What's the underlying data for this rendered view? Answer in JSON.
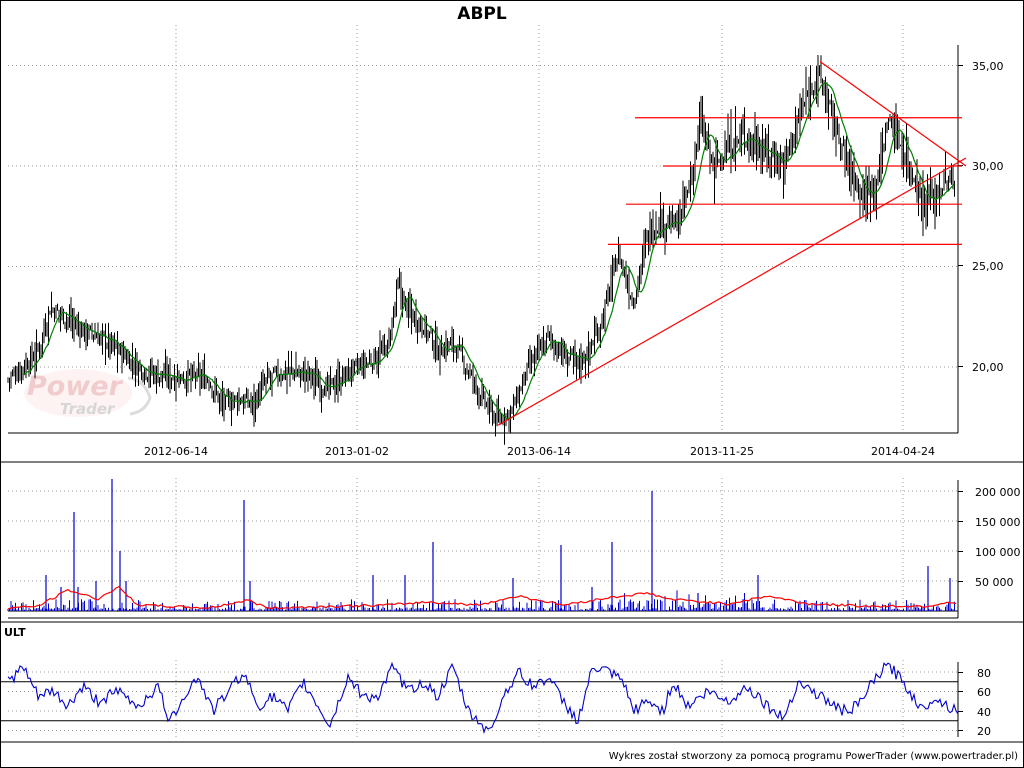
{
  "chart_data": [
    {
      "type": "candlestick",
      "title": "ABPL",
      "ylim": [
        17.0,
        36.0
      ],
      "y_ticks": [
        "35,00",
        "30,00",
        "25,00",
        "20,00"
      ],
      "x_ticks": [
        "2012-06-14",
        "2013-01-02",
        "2013-06-14",
        "2013-11-25",
        "2014-04-24"
      ],
      "grid": true,
      "colors": {
        "price": "#000000",
        "moving_average": "#008000",
        "lines": "#ff0000"
      },
      "price_path": [
        [
          0,
          19.4
        ],
        [
          15,
          20.0
        ],
        [
          30,
          20.8
        ],
        [
          42,
          22.9
        ],
        [
          55,
          22.6
        ],
        [
          75,
          21.8
        ],
        [
          95,
          21.4
        ],
        [
          110,
          20.8
        ],
        [
          130,
          20.0
        ],
        [
          150,
          19.6
        ],
        [
          175,
          19.5
        ],
        [
          200,
          19.4
        ],
        [
          215,
          18.1
        ],
        [
          230,
          18.4
        ],
        [
          245,
          18.2
        ],
        [
          260,
          19.4
        ],
        [
          280,
          19.8
        ],
        [
          300,
          19.6
        ],
        [
          320,
          18.9
        ],
        [
          340,
          19.7
        ],
        [
          360,
          20.2
        ],
        [
          380,
          21.0
        ],
        [
          390,
          24.0
        ],
        [
          400,
          22.8
        ],
        [
          415,
          22.1
        ],
        [
          430,
          20.8
        ],
        [
          445,
          21.2
        ],
        [
          460,
          19.8
        ],
        [
          475,
          18.3
        ],
        [
          490,
          17.3
        ],
        [
          505,
          17.9
        ],
        [
          520,
          19.9
        ],
        [
          540,
          21.5
        ],
        [
          555,
          20.6
        ],
        [
          570,
          20.2
        ],
        [
          580,
          20.7
        ],
        [
          595,
          22.5
        ],
        [
          610,
          25.7
        ],
        [
          625,
          23.2
        ],
        [
          640,
          26.7
        ],
        [
          655,
          27.3
        ],
        [
          670,
          27.0
        ],
        [
          683,
          29.3
        ],
        [
          692,
          32.3
        ],
        [
          705,
          30.0
        ],
        [
          720,
          30.8
        ],
        [
          735,
          31.5
        ],
        [
          755,
          30.8
        ],
        [
          775,
          30.1
        ],
        [
          795,
          33.0
        ],
        [
          810,
          34.6
        ],
        [
          820,
          33.2
        ],
        [
          830,
          31.5
        ],
        [
          840,
          30.1
        ],
        [
          855,
          28.4
        ],
        [
          870,
          29.5
        ],
        [
          880,
          32.4
        ],
        [
          895,
          30.8
        ],
        [
          905,
          29.5
        ],
        [
          915,
          28.2
        ],
        [
          925,
          28.5
        ],
        [
          940,
          29.2
        ],
        [
          955,
          29.0
        ]
      ],
      "trend_lines": [
        {
          "name": "support",
          "from": [
            490,
            17.1
          ],
          "to": [
            958,
            30.4
          ]
        },
        {
          "name": "resistance",
          "from": [
            812,
            35.2
          ],
          "to": [
            958,
            30.0
          ]
        }
      ],
      "horizontal_levels": [
        {
          "y": 32.4,
          "from_x": 627
        },
        {
          "y": 30.0,
          "from_x": 655
        },
        {
          "y": 28.1,
          "from_x": 618
        },
        {
          "y": 26.1,
          "from_x": 600
        }
      ]
    },
    {
      "type": "bar",
      "panel": "volume",
      "ylim": [
        0,
        230000
      ],
      "y_ticks": [
        "200 000",
        "150 000",
        "100 000",
        "50 000"
      ],
      "colors": {
        "bars": "#0000cc",
        "average": "#ff0000"
      },
      "spikes": [
        [
          38,
          60000
        ],
        [
          53,
          40000
        ],
        [
          66,
          165000
        ],
        [
          70,
          40000
        ],
        [
          88,
          50000
        ],
        [
          104,
          220000
        ],
        [
          112,
          100000
        ],
        [
          118,
          50000
        ],
        [
          236,
          185000
        ],
        [
          242,
          50000
        ],
        [
          365,
          60000
        ],
        [
          397,
          60000
        ],
        [
          425,
          115000
        ],
        [
          505,
          55000
        ],
        [
          553,
          110000
        ],
        [
          584,
          40000
        ],
        [
          604,
          115000
        ],
        [
          644,
          200000
        ],
        [
          690,
          30000
        ],
        [
          750,
          60000
        ],
        [
          920,
          75000
        ],
        [
          942,
          55000
        ]
      ],
      "average_path": [
        [
          0,
          5000
        ],
        [
          30,
          8000
        ],
        [
          60,
          35000
        ],
        [
          90,
          20000
        ],
        [
          110,
          40000
        ],
        [
          130,
          10000
        ],
        [
          200,
          5000
        ],
        [
          240,
          18000
        ],
        [
          260,
          5000
        ],
        [
          380,
          10000
        ],
        [
          420,
          15000
        ],
        [
          470,
          10000
        ],
        [
          510,
          25000
        ],
        [
          555,
          10000
        ],
        [
          600,
          22000
        ],
        [
          640,
          30000
        ],
        [
          660,
          20000
        ],
        [
          720,
          12000
        ],
        [
          760,
          25000
        ],
        [
          800,
          12000
        ],
        [
          860,
          8000
        ],
        [
          920,
          8000
        ],
        [
          940,
          15000
        ],
        [
          958,
          10000
        ]
      ]
    },
    {
      "type": "line",
      "panel": "oscillator",
      "label": "ULT",
      "ylim": [
        15,
        90
      ],
      "y_ticks": [
        "80",
        "60",
        "40",
        "20"
      ],
      "reference_lines": [
        70,
        30
      ],
      "colors": {
        "line": "#0000cc",
        "reference": "#000000"
      },
      "path": [
        [
          0,
          70
        ],
        [
          15,
          85
        ],
        [
          30,
          55
        ],
        [
          45,
          60
        ],
        [
          60,
          45
        ],
        [
          75,
          65
        ],
        [
          90,
          50
        ],
        [
          110,
          60
        ],
        [
          130,
          45
        ],
        [
          150,
          65
        ],
        [
          162,
          28
        ],
        [
          175,
          55
        ],
        [
          190,
          75
        ],
        [
          205,
          40
        ],
        [
          220,
          60
        ],
        [
          235,
          80
        ],
        [
          250,
          45
        ],
        [
          265,
          55
        ],
        [
          280,
          40
        ],
        [
          295,
          70
        ],
        [
          310,
          45
        ],
        [
          322,
          25
        ],
        [
          340,
          75
        ],
        [
          355,
          55
        ],
        [
          370,
          55
        ],
        [
          385,
          85
        ],
        [
          400,
          60
        ],
        [
          415,
          70
        ],
        [
          430,
          55
        ],
        [
          445,
          85
        ],
        [
          460,
          40
        ],
        [
          475,
          25
        ],
        [
          482,
          18
        ],
        [
          495,
          55
        ],
        [
          510,
          80
        ],
        [
          525,
          65
        ],
        [
          540,
          75
        ],
        [
          555,
          50
        ],
        [
          570,
          30
        ],
        [
          585,
          85
        ],
        [
          600,
          80
        ],
        [
          615,
          70
        ],
        [
          625,
          40
        ],
        [
          640,
          50
        ],
        [
          655,
          40
        ],
        [
          665,
          70
        ],
        [
          680,
          45
        ],
        [
          700,
          60
        ],
        [
          720,
          50
        ],
        [
          740,
          65
        ],
        [
          760,
          45
        ],
        [
          775,
          32
        ],
        [
          790,
          70
        ],
        [
          805,
          60
        ],
        [
          820,
          50
        ],
        [
          835,
          40
        ],
        [
          850,
          45
        ],
        [
          865,
          70
        ],
        [
          880,
          88
        ],
        [
          895,
          70
        ],
        [
          905,
          55
        ],
        [
          915,
          40
        ],
        [
          925,
          55
        ],
        [
          940,
          45
        ],
        [
          955,
          40
        ]
      ]
    }
  ],
  "footer": "Wykres został stworzony za pomocą programu PowerTrader (www.powertrader.pl)"
}
